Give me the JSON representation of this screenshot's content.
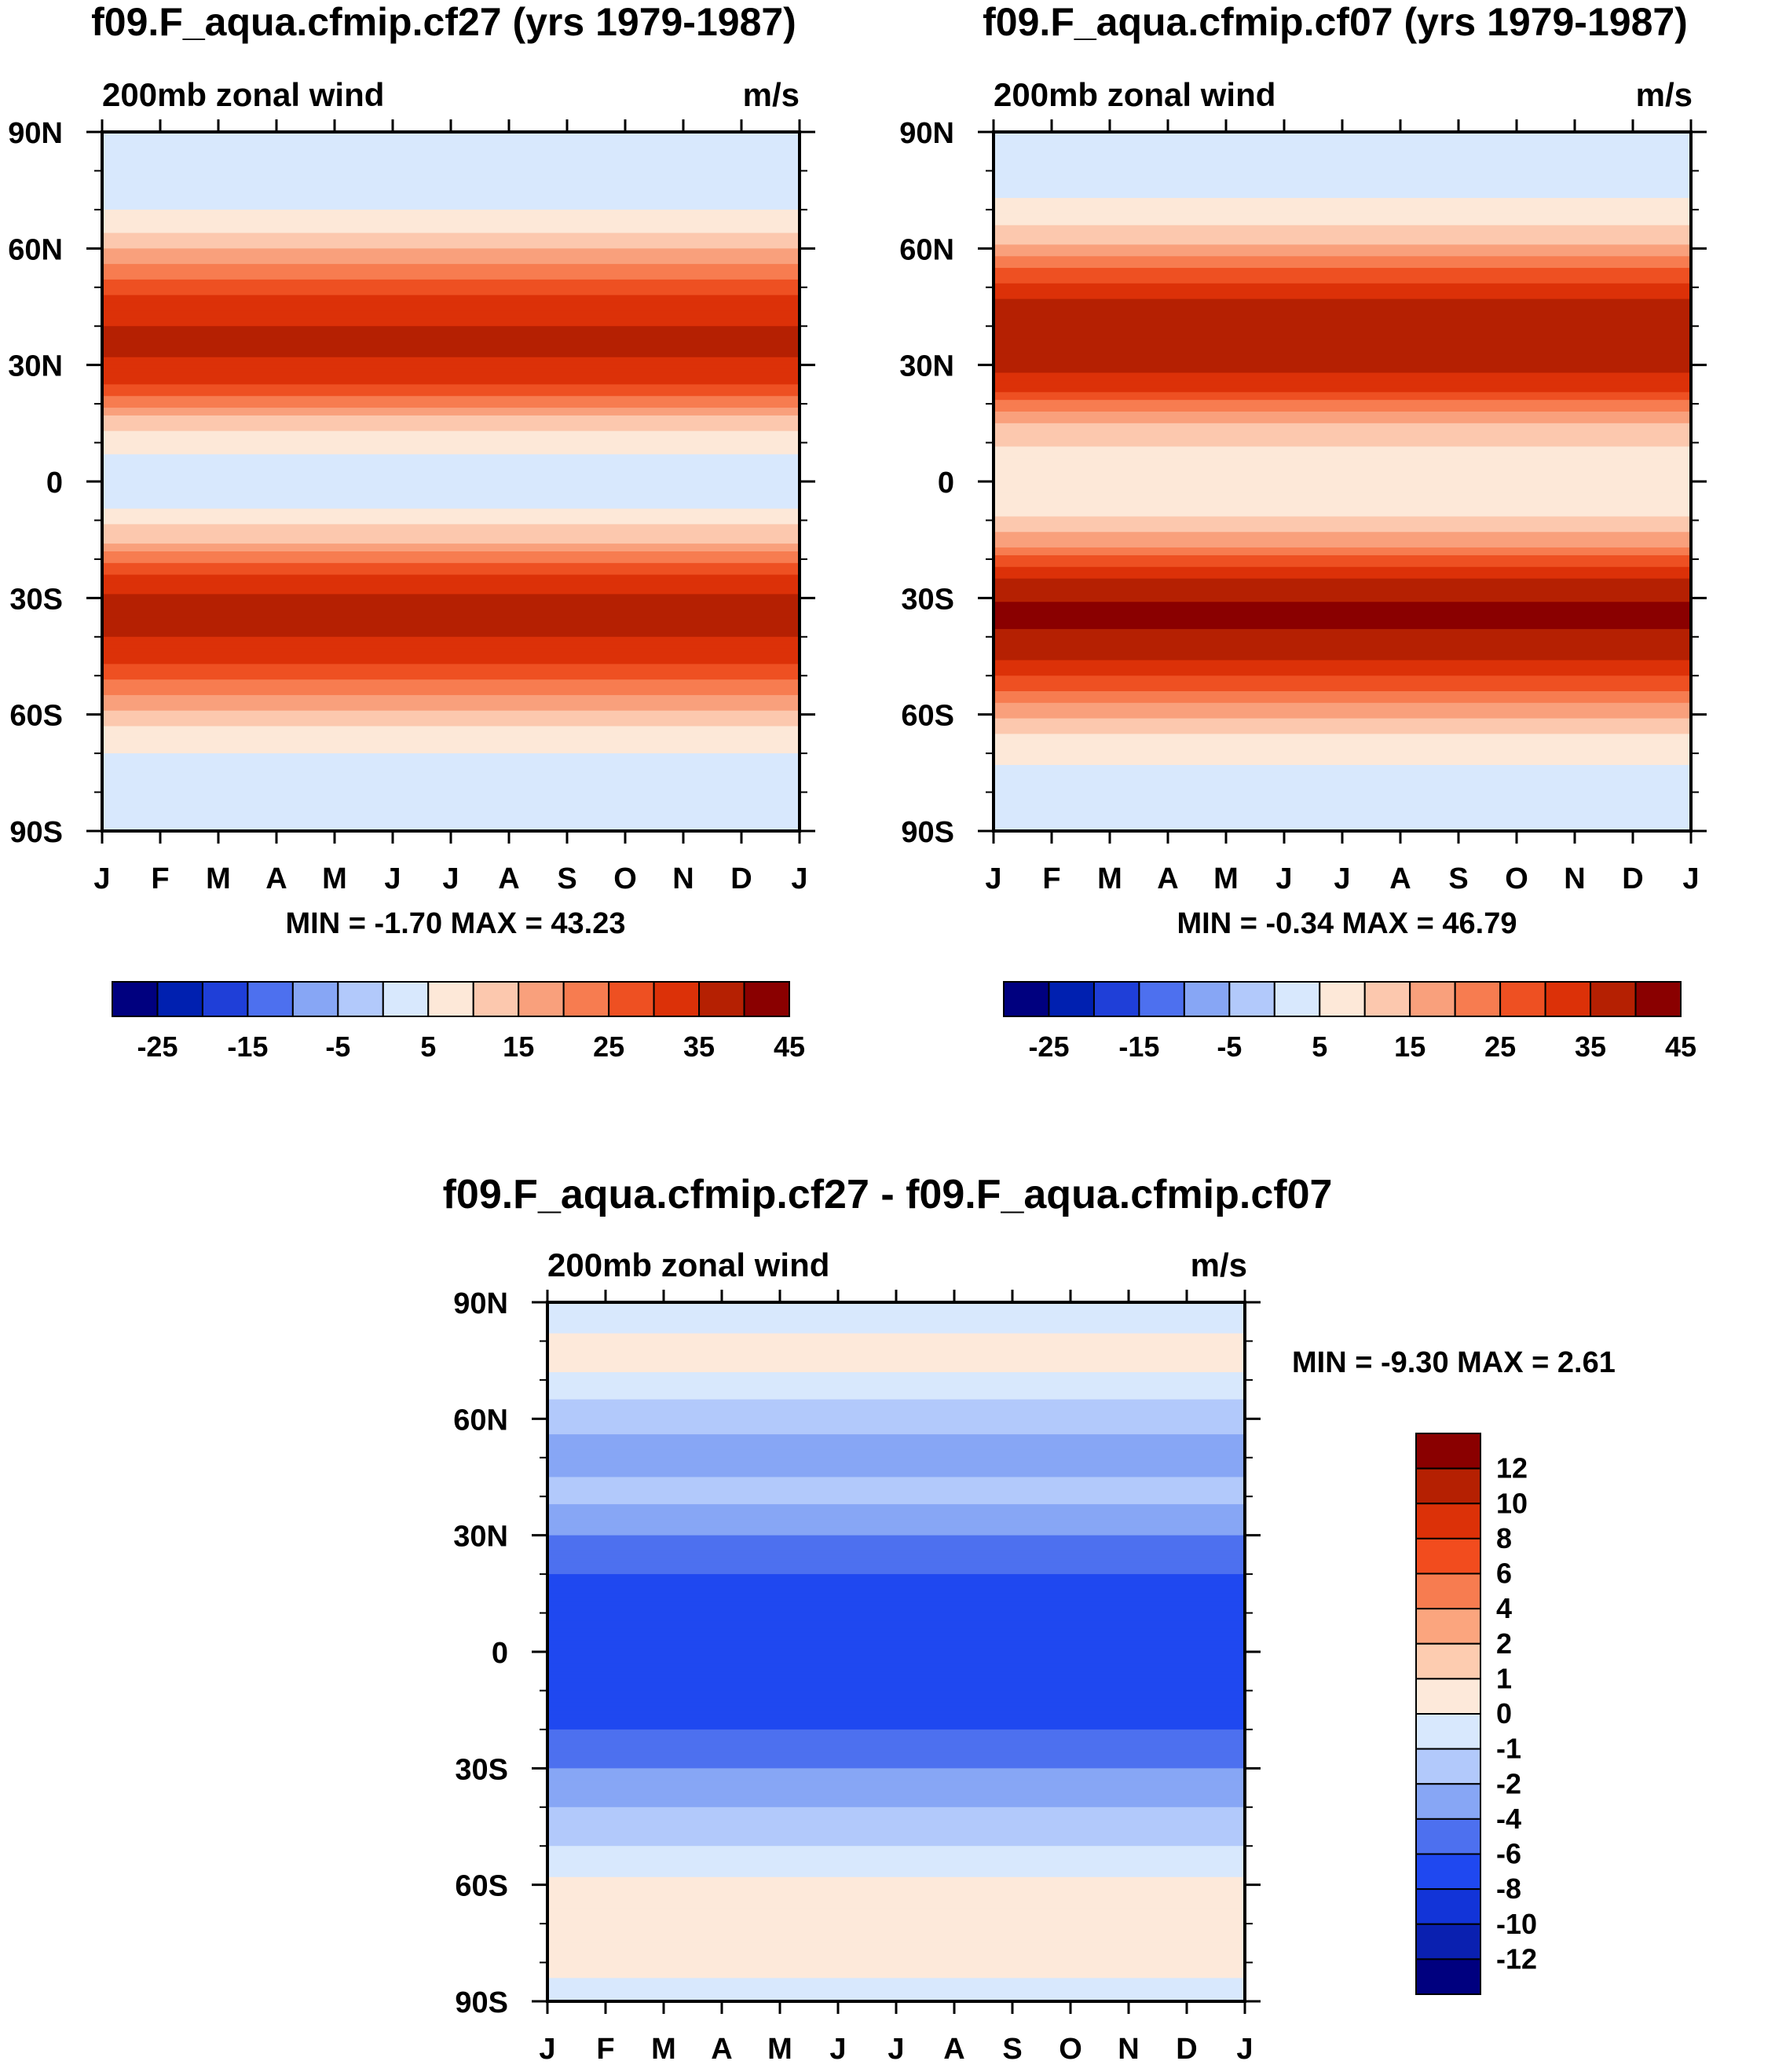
{
  "chart_data": [
    {
      "type": "heatmap",
      "title": "f09.F_aqua.cfmip.cf27 (yrs 1979-1987)",
      "variable": "200mb zonal wind",
      "units": "m/s",
      "x_ticks": [
        "J",
        "F",
        "M",
        "A",
        "M",
        "J",
        "J",
        "A",
        "S",
        "O",
        "N",
        "D",
        "J"
      ],
      "y_ticks": [
        "90N",
        "60N",
        "30N",
        "0",
        "30S",
        "60S",
        "90S"
      ],
      "ylim": [
        -90,
        90
      ],
      "min_max_text": "MIN =  -1.70 MAX =  43.23",
      "profile": {
        "lat": [
          90,
          80,
          70,
          62,
          55,
          45,
          35,
          25,
          15,
          5,
          0,
          -5,
          -15,
          -25,
          -33,
          -45,
          -55,
          -63,
          -70,
          -80,
          -90
        ],
        "u": [
          2,
          3,
          5,
          12,
          22,
          33,
          37,
          30,
          12,
          3,
          2,
          3,
          14,
          32,
          38,
          33,
          20,
          10,
          5,
          3,
          2
        ]
      },
      "colorbar": {
        "colors": [
          "#00007f",
          "#0020b0",
          "#1f3fd8",
          "#4d70ef",
          "#87a6f5",
          "#b2c9fb",
          "#d8e8fd",
          "#fde8d8",
          "#fcc8ae",
          "#f9a07c",
          "#f77c50",
          "#ee5022",
          "#dc3108",
          "#b52002",
          "#8a0000"
        ],
        "labels": [
          "-25",
          "-15",
          "-5",
          "5",
          "15",
          "25",
          "35",
          "45"
        ]
      }
    },
    {
      "type": "heatmap",
      "title": "f09.F_aqua.cfmip.cf07 (yrs 1979-1987)",
      "variable": "200mb zonal wind",
      "units": "m/s",
      "x_ticks": [
        "J",
        "F",
        "M",
        "A",
        "M",
        "J",
        "J",
        "A",
        "S",
        "O",
        "N",
        "D",
        "J"
      ],
      "y_ticks": [
        "90N",
        "60N",
        "30N",
        "0",
        "30S",
        "60S",
        "90S"
      ],
      "ylim": [
        -90,
        90
      ],
      "min_max_text": "MIN =  -0.34 MAX =  46.79",
      "profile": {
        "lat": [
          90,
          80,
          70,
          62,
          55,
          45,
          35,
          25,
          15,
          5,
          0,
          -5,
          -15,
          -25,
          -33,
          -45,
          -55,
          -63,
          -70,
          -80,
          -90
        ],
        "u": [
          2,
          3,
          6,
          14,
          25,
          37,
          40,
          33,
          15,
          6,
          5,
          6,
          17,
          35,
          42,
          37,
          23,
          12,
          6,
          3,
          2
        ]
      },
      "colorbar": {
        "colors": [
          "#00007f",
          "#0020b0",
          "#1f3fd8",
          "#4d70ef",
          "#87a6f5",
          "#b2c9fb",
          "#d8e8fd",
          "#fde8d8",
          "#fcc8ae",
          "#f9a07c",
          "#f77c50",
          "#ee5022",
          "#dc3108",
          "#b52002",
          "#8a0000"
        ],
        "labels": [
          "-25",
          "-15",
          "-5",
          "5",
          "15",
          "25",
          "35",
          "45"
        ]
      }
    },
    {
      "type": "heatmap",
      "title": "f09.F_aqua.cfmip.cf27 - f09.F_aqua.cfmip.cf07",
      "variable": "200mb zonal wind",
      "units": "m/s",
      "x_ticks": [
        "J",
        "F",
        "M",
        "A",
        "M",
        "J",
        "J",
        "A",
        "S",
        "O",
        "N",
        "D",
        "J"
      ],
      "y_ticks": [
        "90N",
        "60N",
        "30N",
        "0",
        "30S",
        "60S",
        "90S"
      ],
      "ylim": [
        -90,
        90
      ],
      "min_max_text": "MIN =  -9.30 MAX =   2.61",
      "profile": {
        "lat": [
          90,
          75,
          62,
          50,
          40,
          30,
          20,
          10,
          0,
          -10,
          -20,
          -30,
          -40,
          -50,
          -62,
          -75,
          -90
        ],
        "u": [
          -0.5,
          0.4,
          -1.5,
          -2.5,
          -1.5,
          -4,
          -6,
          -7,
          -6,
          -7,
          -6,
          -4,
          -2,
          -1,
          0.5,
          0.8,
          -0.5
        ]
      },
      "colorbar": {
        "colors": [
          "#8a0000",
          "#b52002",
          "#dc3108",
          "#f24c1e",
          "#f77c50",
          "#fba57e",
          "#fdccb0",
          "#fde9da",
          "#d8e8fd",
          "#b2c9fb",
          "#87a6f5",
          "#4d70ef",
          "#1f48f0",
          "#1234d8",
          "#0a20b0",
          "#00007f"
        ],
        "labels": [
          "12",
          "10",
          "8",
          "6",
          "4",
          "2",
          "1",
          "0",
          "-1",
          "-2",
          "-4",
          "-6",
          "-8",
          "-10",
          "-12"
        ]
      }
    }
  ]
}
